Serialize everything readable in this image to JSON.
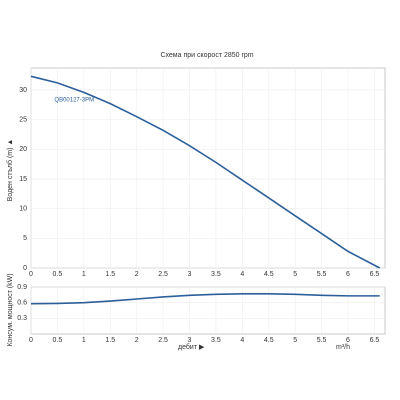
{
  "chart_data": [
    {
      "type": "line",
      "title": "Схема при скорост 2850 rpm",
      "y_label": "Воден стълб (m) ▲",
      "x": [
        0,
        0.5,
        1,
        1.5,
        2,
        2.5,
        3,
        3.5,
        4,
        4.5,
        5,
        5.5,
        6,
        6.6
      ],
      "series": [
        {
          "name": "QB00127-3PM",
          "color": "#2c5f9a",
          "values": [
            32.3,
            31.2,
            29.6,
            27.7,
            25.5,
            23.2,
            20.6,
            17.8,
            14.8,
            11.8,
            8.8,
            5.8,
            2.8,
            0
          ]
        }
      ],
      "xlim": [
        0,
        6.7
      ],
      "xticks": [
        0,
        0.5,
        1,
        1.5,
        2,
        2.5,
        3,
        3.5,
        4,
        4.5,
        5,
        5.5,
        6,
        6.5
      ],
      "ylim": [
        0,
        33.7
      ],
      "yticks": [
        0,
        5,
        10,
        15,
        20,
        25,
        30
      ],
      "grid": true
    },
    {
      "type": "line",
      "y_label": "Консум. мощност (kW)",
      "x_label": "дебит ▶",
      "x_unit": "m³/h",
      "x": [
        0,
        0.5,
        1,
        1.5,
        2,
        2.5,
        3,
        3.5,
        4,
        4.5,
        5,
        5.5,
        6,
        6.6
      ],
      "series": [
        {
          "color": "#2c5f9a",
          "values": [
            0.58,
            0.585,
            0.6,
            0.63,
            0.67,
            0.71,
            0.74,
            0.76,
            0.77,
            0.77,
            0.76,
            0.74,
            0.73,
            0.73
          ]
        }
      ],
      "xlim": [
        0,
        6.7
      ],
      "xticks": [
        0,
        0.5,
        1,
        1.5,
        2,
        2.5,
        3,
        3.5,
        4,
        4.5,
        5,
        5.5,
        6,
        6.5
      ],
      "ylim": [
        0,
        0.9
      ],
      "yticks": [
        0.3,
        0.6,
        0.9
      ],
      "grid": true
    }
  ]
}
